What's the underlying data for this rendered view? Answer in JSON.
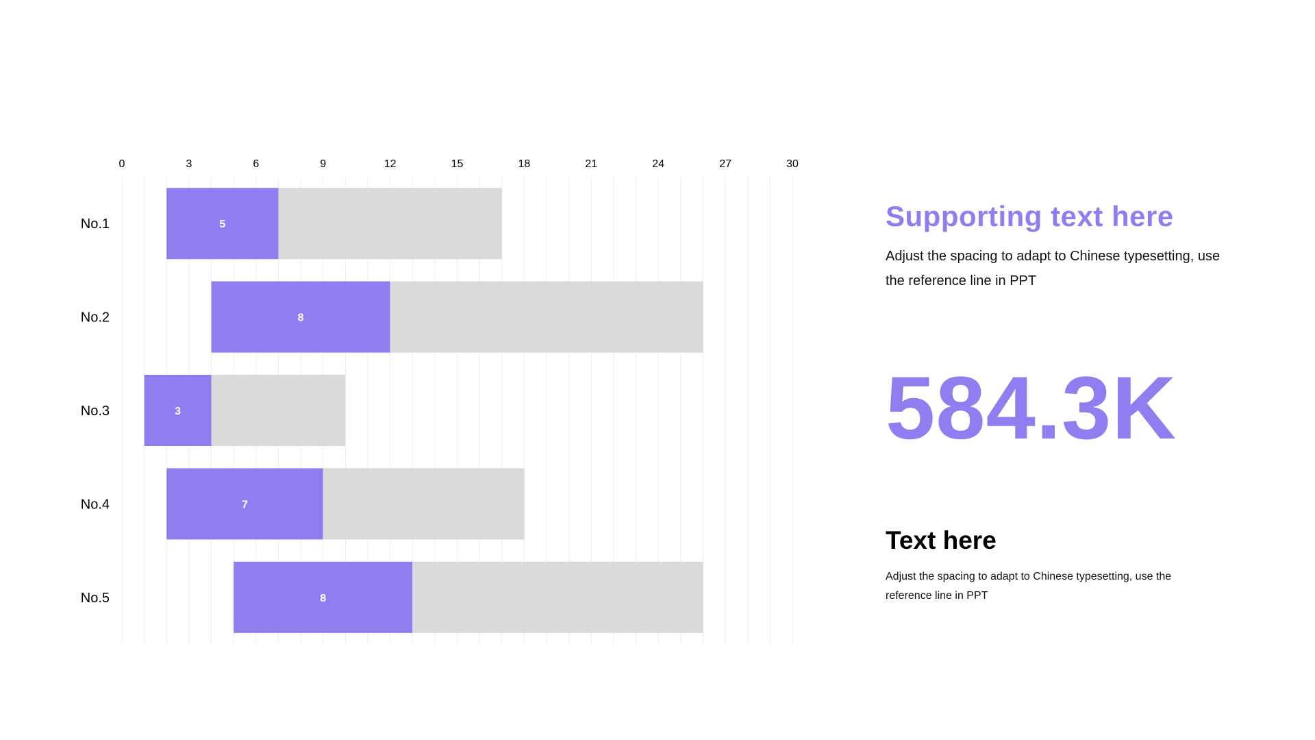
{
  "colors": {
    "accent": "#8f7ef0",
    "track": "#d9d9d9",
    "grid": "#ececec",
    "text": "#000000",
    "bar_label": "#ffffff"
  },
  "chart_data": {
    "type": "bar",
    "orientation": "horizontal",
    "stacked": true,
    "categories": [
      "No.1",
      "No.2",
      "No.3",
      "No.4",
      "No.5"
    ],
    "offsets": [
      2,
      4,
      1,
      2,
      5
    ],
    "series": [
      {
        "values": [
          5,
          8,
          3,
          7,
          8
        ],
        "color": "#8f7ef0",
        "show_labels": true
      },
      {
        "values": [
          10,
          14,
          6,
          9,
          13
        ],
        "color": "#d9d9d9",
        "show_labels": false
      }
    ],
    "xlim": [
      0,
      30
    ],
    "xticks": [
      "0",
      "3",
      "6",
      "9",
      "12",
      "15",
      "18",
      "21",
      "24",
      "27",
      "30"
    ],
    "x_axis_position": "top",
    "minor_grid_step": 1,
    "grid": true,
    "title": "",
    "xlabel": "",
    "ylabel": ""
  },
  "panel": {
    "supporting_title": "Supporting text here",
    "supporting_body": "Adjust the spacing to adapt to Chinese typesetting, use the reference line in PPT",
    "big_number": "584.3K",
    "secondary_title": "Text here",
    "secondary_body": "Adjust the spacing to adapt to Chinese typesetting, use the reference line in PPT"
  }
}
